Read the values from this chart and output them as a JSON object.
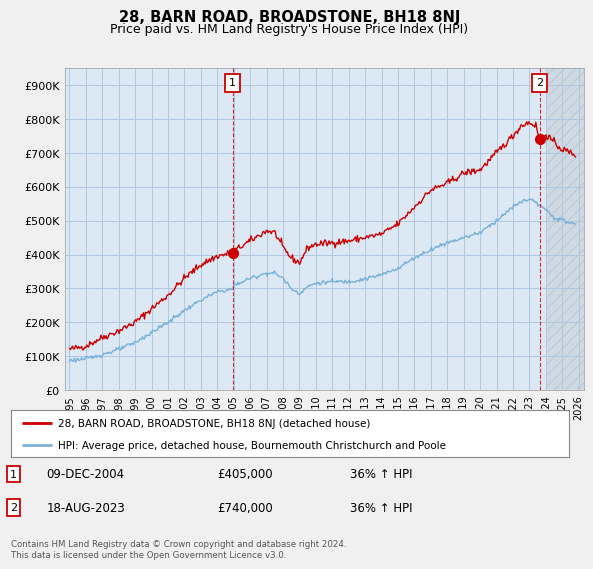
{
  "title": "28, BARN ROAD, BROADSTONE, BH18 8NJ",
  "subtitle": "Price paid vs. HM Land Registry's House Price Index (HPI)",
  "ylim": [
    0,
    950000
  ],
  "yticks": [
    0,
    100000,
    200000,
    300000,
    400000,
    500000,
    600000,
    700000,
    800000,
    900000
  ],
  "ytick_labels": [
    "£0",
    "£100K",
    "£200K",
    "£300K",
    "£400K",
    "£500K",
    "£600K",
    "£700K",
    "£800K",
    "£900K"
  ],
  "background_color": "#f0f0f0",
  "plot_background": "#dce9f5",
  "grid_color": "#b0c8e0",
  "red_color": "#cc0000",
  "blue_color": "#7ab0d8",
  "title_fontsize": 10.5,
  "subtitle_fontsize": 9,
  "legend_label_red": "28, BARN ROAD, BROADSTONE, BH18 8NJ (detached house)",
  "legend_label_blue": "HPI: Average price, detached house, Bournemouth Christchurch and Poole",
  "annotation1_date": "09-DEC-2004",
  "annotation1_price": "£405,000",
  "annotation1_hpi": "36% ↑ HPI",
  "annotation2_date": "18-AUG-2023",
  "annotation2_price": "£740,000",
  "annotation2_hpi": "36% ↑ HPI",
  "footer": "Contains HM Land Registry data © Crown copyright and database right 2024.\nThis data is licensed under the Open Government Licence v3.0.",
  "sale1_year": 2004.94,
  "sale1_price": 405000,
  "sale2_year": 2023.63,
  "sale2_price": 740000,
  "xmin": 1995,
  "xmax": 2026
}
